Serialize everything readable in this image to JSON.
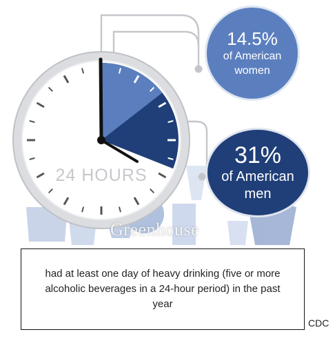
{
  "clock": {
    "label": "24 HOURS",
    "women_share_percent": 14.5,
    "men_share_percent": 31,
    "colors": {
      "women": "#5b7fbe",
      "men": "#203f78"
    }
  },
  "women": {
    "percent": "14.5%",
    "line1": "of American",
    "line2": "women"
  },
  "men": {
    "percent": "31%",
    "line1": "of American",
    "line2": "men"
  },
  "caption": "had at least one day of heavy drinking (five or more alcoholic beverages in a 24-hour period) in the past year",
  "source": "CDC",
  "watermark": "Greenhouse"
}
